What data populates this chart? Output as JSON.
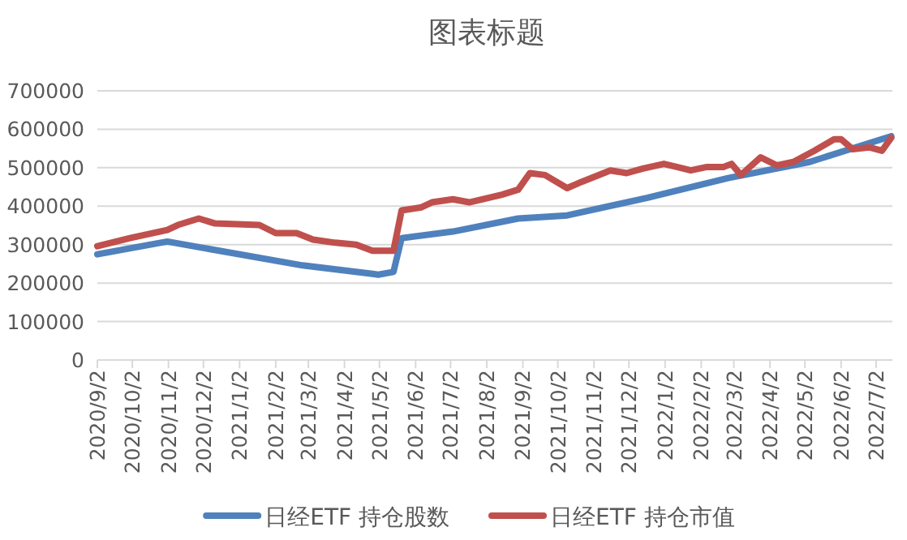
{
  "chart_data": {
    "type": "line",
    "title": "图表标题",
    "ylim": [
      0,
      700000
    ],
    "yticks": [
      0,
      100000,
      200000,
      300000,
      400000,
      500000,
      600000,
      700000
    ],
    "xlim": [
      "2020-09-02",
      "2022-07-16"
    ],
    "xticks": [
      {
        "value": "2020-09-02",
        "label": "2020/9/2"
      },
      {
        "value": "2020-10-02",
        "label": "2020/10/2"
      },
      {
        "value": "2020-11-02",
        "label": "2020/11/2"
      },
      {
        "value": "2020-12-02",
        "label": "2020/12/2"
      },
      {
        "value": "2021-01-02",
        "label": "2021/1/2"
      },
      {
        "value": "2021-02-02",
        "label": "2021/2/2"
      },
      {
        "value": "2021-03-02",
        "label": "2021/3/2"
      },
      {
        "value": "2021-04-02",
        "label": "2021/4/2"
      },
      {
        "value": "2021-05-02",
        "label": "2021/5/2"
      },
      {
        "value": "2021-06-02",
        "label": "2021/6/2"
      },
      {
        "value": "2021-07-02",
        "label": "2021/7/2"
      },
      {
        "value": "2021-08-02",
        "label": "2021/8/2"
      },
      {
        "value": "2021-09-02",
        "label": "2021/9/2"
      },
      {
        "value": "2021-10-02",
        "label": "2021/10/2"
      },
      {
        "value": "2021-11-02",
        "label": "2021/11/2"
      },
      {
        "value": "2021-12-02",
        "label": "2021/12/2"
      },
      {
        "value": "2022-01-02",
        "label": "2022/1/2"
      },
      {
        "value": "2022-02-02",
        "label": "2022/2/2"
      },
      {
        "value": "2022-03-02",
        "label": "2022/3/2"
      },
      {
        "value": "2022-04-02",
        "label": "2022/4/2"
      },
      {
        "value": "2022-05-02",
        "label": "2022/5/2"
      },
      {
        "value": "2022-06-02",
        "label": "2022/6/2"
      },
      {
        "value": "2022-07-02",
        "label": "2022/7/2"
      }
    ],
    "grid": "y",
    "legend": "bottom",
    "line_style": "solid",
    "marker": "none",
    "series": [
      {
        "name": "日经ETF 持仓股数",
        "color": "#4f81bd",
        "x": [
          "2020-09-02",
          "2020-11-01",
          "2021-02-25",
          "2021-04-26",
          "2021-05-01",
          "2021-05-14",
          "2021-05-21",
          "2021-07-04",
          "2021-08-29",
          "2021-10-10",
          "2021-12-18",
          "2022-02-25",
          "2022-05-06",
          "2022-07-15"
        ],
        "values": [
          275000,
          308000,
          246000,
          224000,
          222000,
          229000,
          317000,
          334000,
          368000,
          376000,
          422000,
          473000,
          515000,
          582000
        ]
      },
      {
        "name": "日经ETF 持仓市值",
        "color": "#c0504d",
        "x": [
          "2020-09-02",
          "2020-09-30",
          "2020-11-01",
          "2020-11-10",
          "2020-11-28",
          "2020-12-12",
          "2021-01-19",
          "2021-02-02",
          "2021-02-20",
          "2021-03-06",
          "2021-03-25",
          "2021-04-12",
          "2021-04-26",
          "2021-05-14",
          "2021-05-21",
          "2021-06-07",
          "2021-06-16",
          "2021-07-04",
          "2021-07-18",
          "2021-08-15",
          "2021-08-29",
          "2021-09-08",
          "2021-09-21",
          "2021-10-10",
          "2021-10-23",
          "2021-11-16",
          "2021-11-30",
          "2021-12-14",
          "2022-01-01",
          "2022-01-12",
          "2022-01-24",
          "2022-02-07",
          "2022-02-21",
          "2022-02-28",
          "2022-03-08",
          "2022-03-25",
          "2022-04-08",
          "2022-04-22",
          "2022-05-10",
          "2022-05-27",
          "2022-06-02",
          "2022-06-12",
          "2022-06-26",
          "2022-07-07",
          "2022-07-15"
        ],
        "values": [
          296000,
          317000,
          338000,
          351000,
          368000,
          355000,
          351000,
          330000,
          330000,
          313000,
          305000,
          300000,
          284000,
          284000,
          389000,
          397000,
          410000,
          418000,
          410000,
          430000,
          443000,
          486000,
          481000,
          447000,
          464000,
          493000,
          486000,
          498000,
          510000,
          502000,
          493000,
          502000,
          502000,
          510000,
          481000,
          527000,
          506000,
          515000,
          544000,
          574000,
          574000,
          548000,
          553000,
          544000,
          578000
        ]
      }
    ]
  }
}
